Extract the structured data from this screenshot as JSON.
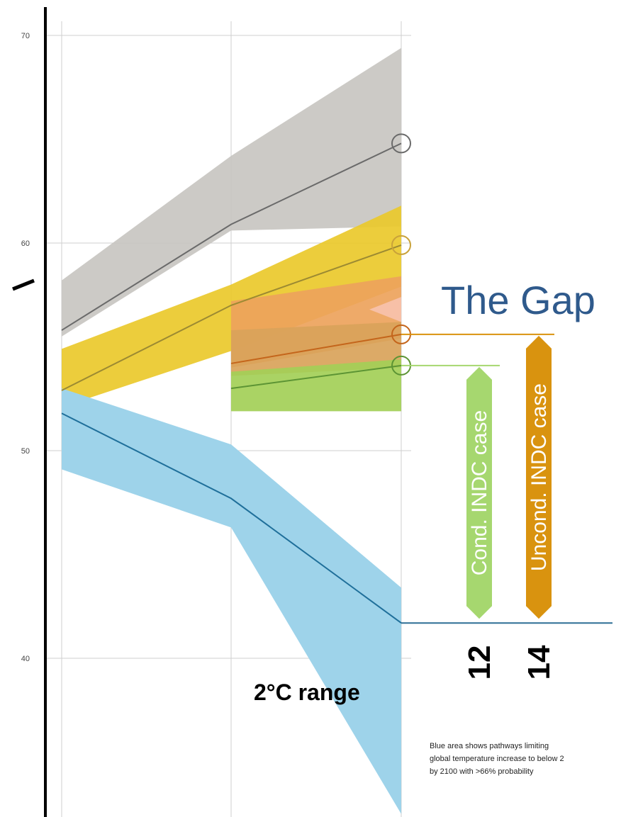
{
  "chart_data": {
    "type": "area",
    "title": "The Gap",
    "xlabel": "",
    "ylabel": "",
    "x": [
      0,
      1,
      2
    ],
    "ylim": [
      33,
      74
    ],
    "yticks": [
      40,
      50,
      60,
      70
    ],
    "grid": true,
    "bands": [
      {
        "key": "baseline",
        "color": "#c8c6c1",
        "lower": [
          55.5,
          60.6,
          60.8
        ],
        "upper": [
          58.2,
          64.2,
          69.4
        ]
      },
      {
        "key": "current_policy",
        "color": "#eac92b",
        "lower": [
          52.1,
          54.8,
          57.9
        ],
        "upper": [
          54.9,
          58.0,
          61.8
        ]
      },
      {
        "key": "uncond_indc",
        "color": "#eda35c",
        "lower": [
          null,
          54.0,
          55.4
        ],
        "upper": [
          null,
          57.2,
          58.4
        ]
      },
      {
        "key": "pink",
        "color": "#f7c2ac",
        "lower": [
          null,
          null,
          56.2
        ],
        "upper": [
          null,
          null,
          57.4
        ]
      },
      {
        "key": "cond_indc_band",
        "color": "#d9a35a",
        "lower": [
          null,
          53.6,
          54.0
        ],
        "upper": [
          null,
          55.8,
          56.2
        ]
      },
      {
        "key": "cond_indc",
        "color": "#a3cf57",
        "lower": [
          null,
          51.9,
          51.9
        ],
        "upper": [
          null,
          53.8,
          54.4
        ]
      },
      {
        "key": "two_degree",
        "color": "#9ed3ea",
        "lower": [
          49.1,
          46.3,
          32.5
        ],
        "upper": [
          53.0,
          50.3,
          43.4
        ]
      }
    ],
    "series": [
      {
        "key": "baseline",
        "color": "#6a6a6a",
        "values": [
          55.8,
          60.9,
          64.8
        ]
      },
      {
        "key": "current_policy",
        "color": "#9c8a32",
        "values": [
          52.9,
          57.0,
          59.9
        ]
      },
      {
        "key": "uncond_indc",
        "color": "#c4651b",
        "values": null,
        "values_partial": [
          54.2,
          55.6
        ]
      },
      {
        "key": "cond_indc",
        "color": "#5c9434",
        "values_partial": [
          53.0,
          54.1
        ]
      },
      {
        "key": "two_degree",
        "color": "#1f6f9a",
        "values": [
          51.8,
          47.7,
          41.7
        ]
      }
    ],
    "endpoint_markers": [
      {
        "key": "baseline",
        "value": 64.8,
        "color": "#6a6a6a"
      },
      {
        "key": "current_policy",
        "value": 59.9,
        "color": "#c9a23a"
      },
      {
        "key": "uncond_indc",
        "value": 55.6,
        "color": "#c4651b"
      },
      {
        "key": "cond_indc",
        "value": 54.1,
        "color": "#5c9434"
      }
    ],
    "gap_target": 41.7,
    "gaps": [
      {
        "label": "Cond. INDC case",
        "value": "12",
        "color": "#a6d76f",
        "from": 54.1
      },
      {
        "label": "Uncond. INDC case",
        "value": "14",
        "color": "#d9930f",
        "from": 55.6
      }
    ],
    "range_label": "2°C range",
    "note_lines": [
      "Blue area shows pathways limiting",
      "global temperature increase to below 2",
      "by 2100 with >66% probability"
    ]
  }
}
